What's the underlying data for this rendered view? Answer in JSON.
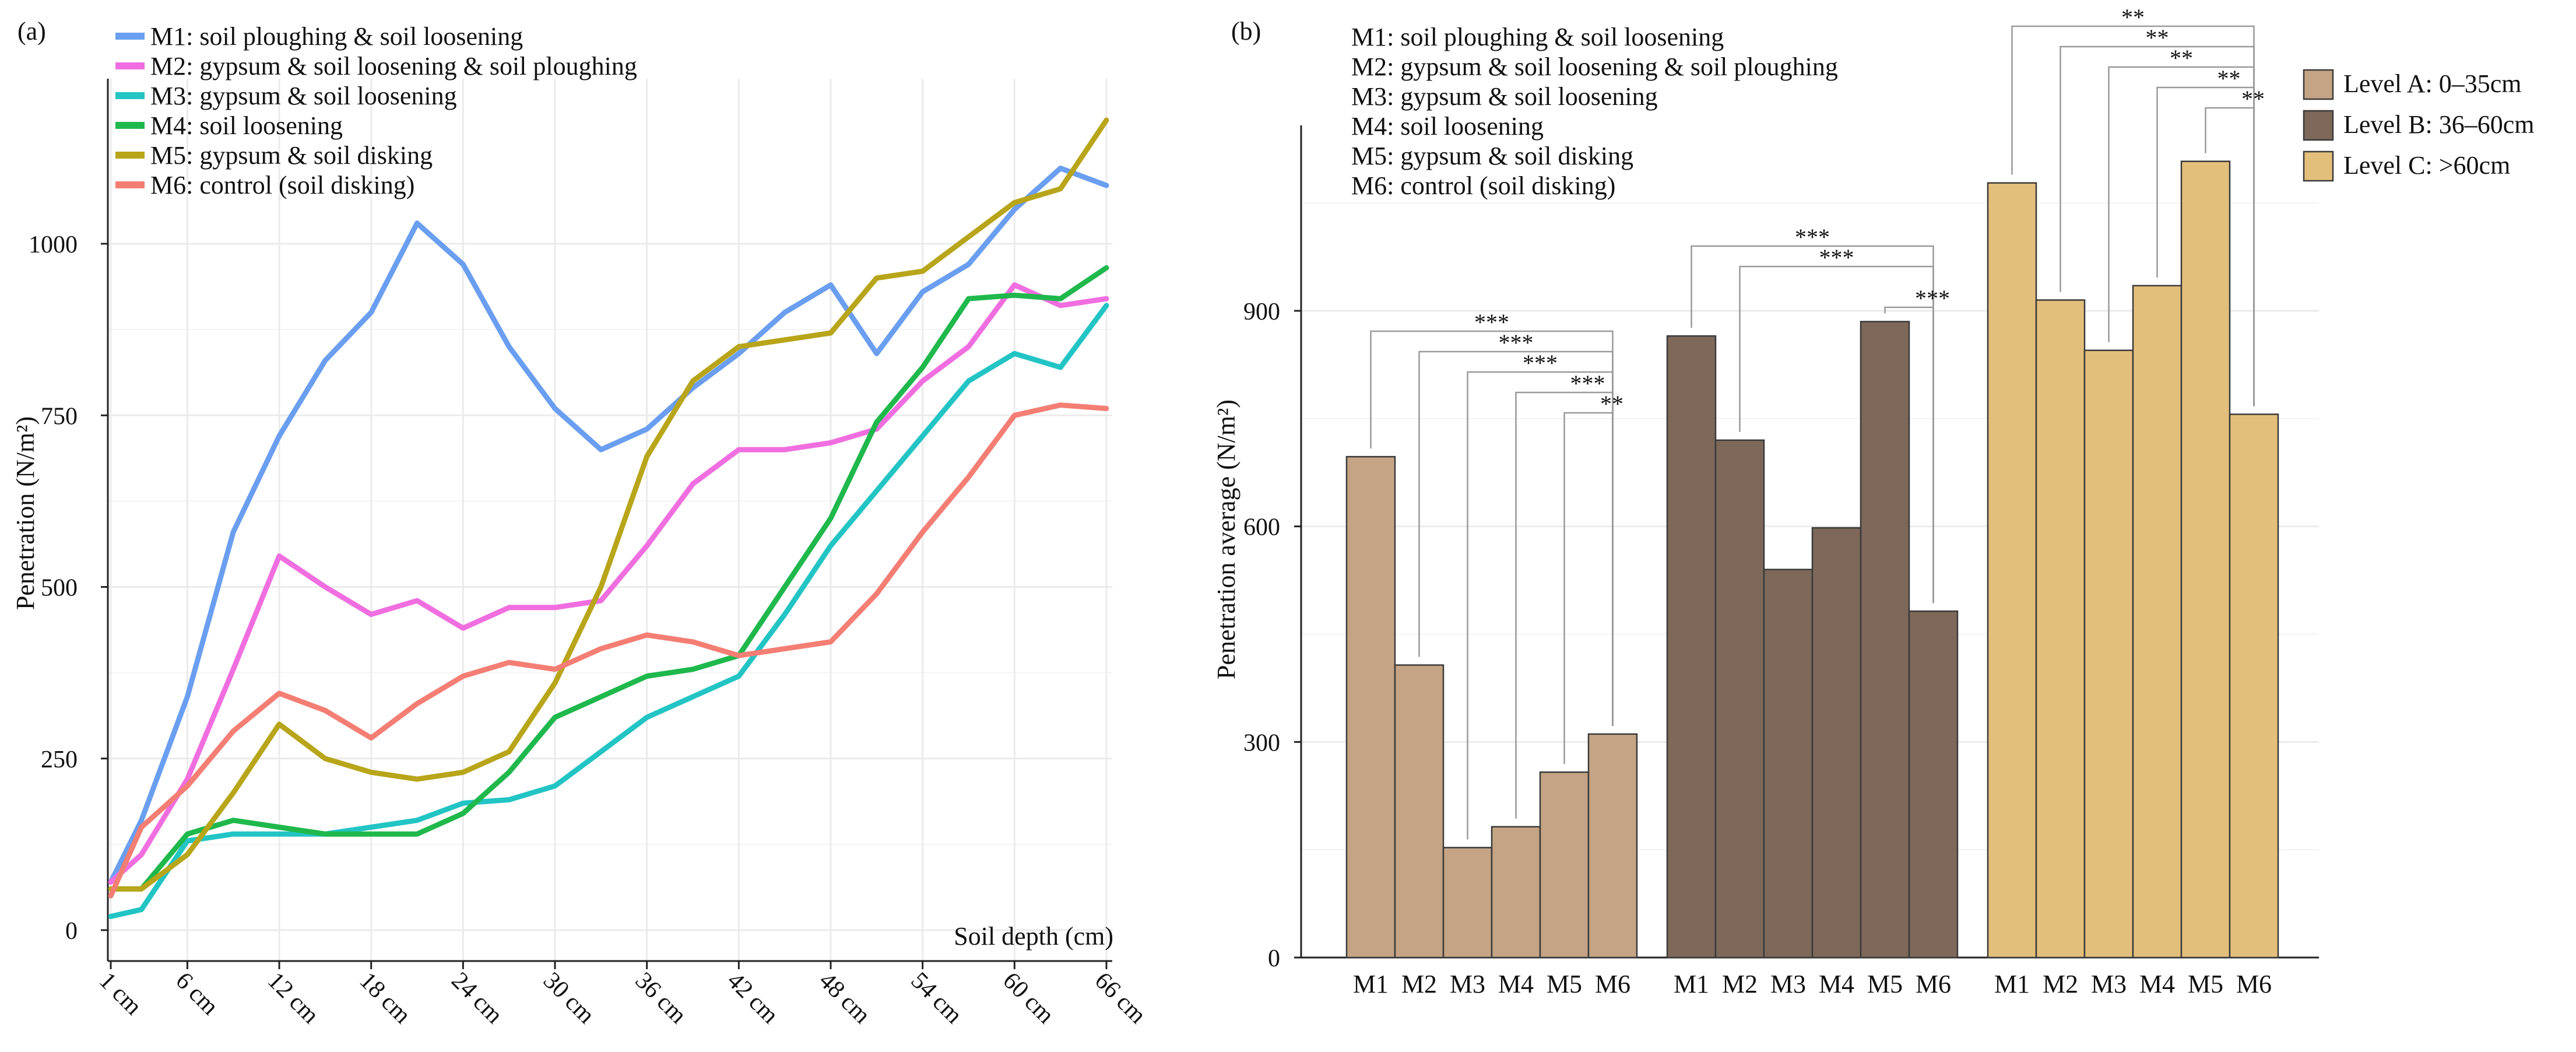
{
  "chart_data": [
    {
      "panel_label": "(a)",
      "type": "line",
      "title": "",
      "xlabel": "Soil depth (cm)",
      "ylabel": "Penetration (N/m²)",
      "xlim": [
        1,
        66
      ],
      "ylim": [
        0,
        1200
      ],
      "grid": true,
      "legend_position": "top-left",
      "x_ticks": [
        1,
        6,
        12,
        18,
        24,
        30,
        36,
        42,
        48,
        54,
        60,
        66
      ],
      "x_tick_labels": [
        "1 cm",
        "6 cm",
        "12 cm",
        "18 cm",
        "24 cm",
        "30 cm",
        "36 cm",
        "42 cm",
        "48 cm",
        "54 cm",
        "60 cm",
        "66 cm"
      ],
      "y_ticks": [
        0,
        250,
        500,
        750,
        1000
      ],
      "y_tick_labels": [
        "0",
        "250",
        "500",
        "750",
        "1000"
      ],
      "x": [
        1,
        3,
        6,
        9,
        12,
        15,
        18,
        21,
        24,
        27,
        30,
        33,
        36,
        39,
        42,
        45,
        48,
        51,
        54,
        57,
        60,
        63,
        66
      ],
      "series": [
        {
          "name": "M1: soil ploughing & soil loosening",
          "color": "#6a9ef0",
          "values": [
            70,
            160,
            340,
            580,
            720,
            830,
            900,
            1030,
            970,
            850,
            760,
            700,
            730,
            790,
            840,
            900,
            940,
            840,
            930,
            970,
            1050,
            1110,
            1085
          ]
        },
        {
          "name": "M2: gypsum & soil loosening & soil ploughing",
          "color": "#f06ee0",
          "values": [
            70,
            110,
            220,
            380,
            545,
            500,
            460,
            480,
            440,
            470,
            470,
            480,
            560,
            650,
            700,
            700,
            710,
            730,
            800,
            850,
            940,
            910,
            920
          ]
        },
        {
          "name": "M3: gypsum & soil loosening",
          "color": "#22c4c4",
          "values": [
            20,
            30,
            130,
            140,
            140,
            140,
            150,
            160,
            185,
            190,
            210,
            260,
            310,
            340,
            370,
            460,
            560,
            640,
            720,
            800,
            840,
            820,
            910
          ]
        },
        {
          "name": "M4: soil loosening",
          "color": "#1fb84c",
          "values": [
            60,
            60,
            140,
            160,
            150,
            140,
            140,
            140,
            170,
            230,
            310,
            340,
            370,
            380,
            400,
            500,
            600,
            740,
            820,
            920,
            925,
            920,
            965
          ]
        },
        {
          "name": "M5: gypsum & soil disking",
          "color": "#b8a519",
          "values": [
            60,
            60,
            110,
            200,
            300,
            250,
            230,
            220,
            230,
            260,
            360,
            500,
            690,
            800,
            850,
            860,
            870,
            950,
            960,
            1010,
            1060,
            1080,
            1180
          ]
        },
        {
          "name": "M6: control (soil disking)",
          "color": "#f47e74",
          "values": [
            50,
            150,
            210,
            290,
            345,
            320,
            280,
            330,
            370,
            390,
            380,
            410,
            430,
            420,
            400,
            410,
            420,
            490,
            580,
            660,
            750,
            765,
            760
          ]
        }
      ]
    },
    {
      "panel_label": "(b)",
      "type": "bar",
      "title": "",
      "xlabel": "",
      "ylabel": "Penetration average (N/m²)",
      "ylim": [
        0,
        1160
      ],
      "grid": true,
      "legend_position": "top-right",
      "y_ticks": [
        0,
        300,
        600,
        900
      ],
      "y_tick_labels": [
        "0",
        "300",
        "600",
        "900"
      ],
      "categories": [
        "M1",
        "M2",
        "M3",
        "M4",
        "M5",
        "M6"
      ],
      "method_legend": [
        "M1: soil ploughing & soil loosening",
        "M2: gypsum & soil loosening & soil ploughing",
        "M3: gypsum & soil loosening",
        "M4: soil loosening",
        "M5: gypsum & soil disking",
        "M6: control (soil disking)"
      ],
      "series": [
        {
          "name": "Level A: 0–35cm",
          "color": "#c4a484",
          "values": [
            697,
            407,
            153,
            182,
            258,
            311
          ]
        },
        {
          "name": "Level B: 36–60cm",
          "color": "#7d685a",
          "values": [
            865,
            720,
            540,
            598,
            885,
            482
          ]
        },
        {
          "name": "Level C: >60cm",
          "color": "#e3bf7c",
          "values": [
            1078,
            915,
            845,
            935,
            1108,
            756
          ]
        }
      ],
      "significance": [
        {
          "group": 0,
          "from": 0,
          "to": 5,
          "label": "***",
          "tier": 0
        },
        {
          "group": 0,
          "from": 1,
          "to": 5,
          "label": "***",
          "tier": 1
        },
        {
          "group": 0,
          "from": 2,
          "to": 5,
          "label": "***",
          "tier": 2
        },
        {
          "group": 0,
          "from": 3,
          "to": 5,
          "label": "***",
          "tier": 3
        },
        {
          "group": 0,
          "from": 4,
          "to": 5,
          "label": "**",
          "tier": 4
        },
        {
          "group": 1,
          "from": 0,
          "to": 5,
          "label": "***",
          "tier": 0
        },
        {
          "group": 1,
          "from": 1,
          "to": 5,
          "label": "***",
          "tier": 1
        },
        {
          "group": 1,
          "from": 4,
          "to": 5,
          "label": "***",
          "tier": 3
        },
        {
          "group": 2,
          "from": 0,
          "to": 5,
          "label": "**",
          "tier": 0
        },
        {
          "group": 2,
          "from": 1,
          "to": 5,
          "label": "**",
          "tier": 1
        },
        {
          "group": 2,
          "from": 2,
          "to": 5,
          "label": "**",
          "tier": 2
        },
        {
          "group": 2,
          "from": 3,
          "to": 5,
          "label": "**",
          "tier": 3
        },
        {
          "group": 2,
          "from": 4,
          "to": 5,
          "label": "**",
          "tier": 4
        }
      ]
    }
  ]
}
